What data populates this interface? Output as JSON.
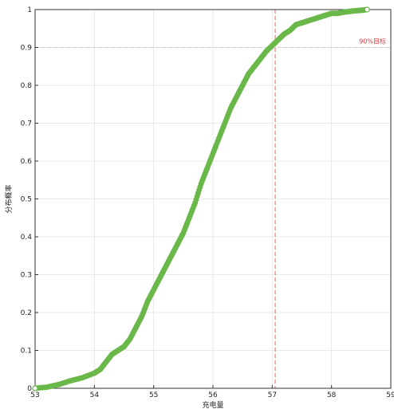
{
  "chart_data": {
    "type": "scatter",
    "title": "",
    "xlabel": "充电量",
    "ylabel": "分布概率",
    "xlim": [
      53,
      59
    ],
    "ylim": [
      0,
      1
    ],
    "x_ticks": [
      "53",
      "54",
      "55",
      "56",
      "57",
      "58",
      "59"
    ],
    "y_ticks": [
      "0",
      "0.1",
      "0.2",
      "0.3",
      "0.4",
      "0.5",
      "0.6",
      "0.7",
      "0.8",
      "0.9",
      "1"
    ],
    "grid": true,
    "legend": "none",
    "marker": "circle",
    "series": [
      {
        "color": "#6ab84a",
        "points": [
          [
            53.0,
            0.0
          ],
          [
            53.2,
            0.003
          ],
          [
            53.4,
            0.01
          ],
          [
            53.6,
            0.02
          ],
          [
            53.8,
            0.028
          ],
          [
            54.0,
            0.04
          ],
          [
            54.1,
            0.05
          ],
          [
            54.2,
            0.07
          ],
          [
            54.3,
            0.09
          ],
          [
            54.4,
            0.1
          ],
          [
            54.5,
            0.11
          ],
          [
            54.6,
            0.13
          ],
          [
            54.7,
            0.16
          ],
          [
            54.8,
            0.19
          ],
          [
            54.9,
            0.23
          ],
          [
            55.0,
            0.26
          ],
          [
            55.1,
            0.29
          ],
          [
            55.2,
            0.32
          ],
          [
            55.3,
            0.35
          ],
          [
            55.4,
            0.38
          ],
          [
            55.5,
            0.41
          ],
          [
            55.6,
            0.45
          ],
          [
            55.7,
            0.49
          ],
          [
            55.8,
            0.54
          ],
          [
            55.9,
            0.58
          ],
          [
            56.0,
            0.62
          ],
          [
            56.1,
            0.66
          ],
          [
            56.2,
            0.7
          ],
          [
            56.3,
            0.74
          ],
          [
            56.4,
            0.77
          ],
          [
            56.5,
            0.8
          ],
          [
            56.6,
            0.83
          ],
          [
            56.7,
            0.85
          ],
          [
            56.8,
            0.87
          ],
          [
            56.9,
            0.89
          ],
          [
            57.0,
            0.905
          ],
          [
            57.1,
            0.92
          ],
          [
            57.2,
            0.935
          ],
          [
            57.3,
            0.945
          ],
          [
            57.4,
            0.96
          ],
          [
            57.5,
            0.965
          ],
          [
            57.6,
            0.97
          ],
          [
            57.7,
            0.975
          ],
          [
            57.8,
            0.98
          ],
          [
            57.9,
            0.985
          ],
          [
            58.0,
            0.99
          ],
          [
            58.1,
            0.99
          ],
          [
            58.2,
            0.993
          ],
          [
            58.3,
            0.995
          ],
          [
            58.4,
            0.997
          ],
          [
            58.5,
            0.998
          ],
          [
            58.6,
            1.0
          ]
        ]
      }
    ],
    "annotations": [
      {
        "text": "90%目标",
        "x": 57.05,
        "y": 0.9,
        "color": "#e2363f"
      }
    ]
  }
}
